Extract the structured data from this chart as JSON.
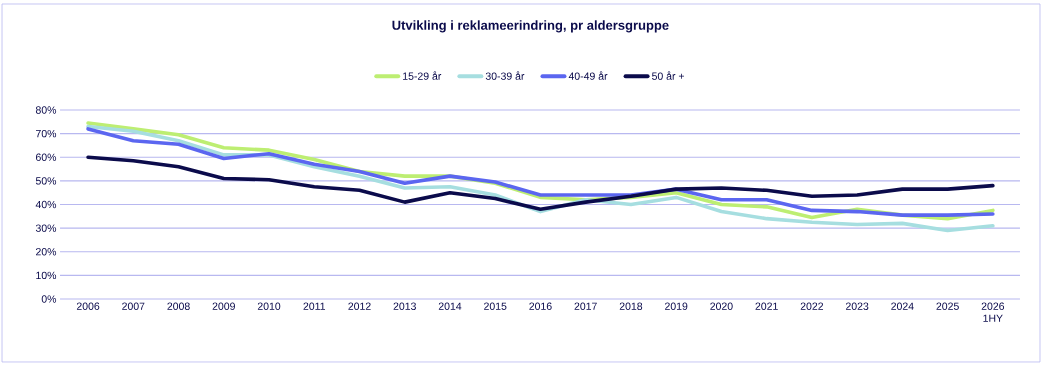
{
  "chart_data": {
    "type": "line",
    "title": "Utvikling i reklameerindring, pr aldersgruppe",
    "categories": [
      "2006",
      "2007",
      "2008",
      "2009",
      "2010",
      "2011",
      "2012",
      "2013",
      "2014",
      "2015",
      "2016",
      "2017",
      "2018",
      "2019",
      "2020",
      "2021",
      "2022",
      "2023",
      "2024",
      "2025",
      "2026 1HY"
    ],
    "series": [
      {
        "name": "15-29 år",
        "color": "#bdee72",
        "values": [
          74.5,
          72,
          69.5,
          64,
          63,
          59,
          54,
          52,
          52,
          49,
          43,
          42,
          43,
          45,
          40,
          39,
          34.5,
          38,
          35.5,
          34,
          37.5
        ]
      },
      {
        "name": "30-39 år",
        "color": "#a6dee0",
        "values": [
          73,
          71,
          67,
          61,
          61,
          56,
          52,
          47,
          47.5,
          44,
          37,
          42,
          40,
          43,
          37,
          34,
          32.5,
          31.5,
          32,
          29,
          31
        ]
      },
      {
        "name": "40-49 år",
        "color": "#5b66f0",
        "values": [
          72,
          67,
          65.5,
          59.5,
          61.5,
          57,
          54,
          49,
          52,
          49.5,
          44,
          44,
          44,
          46.5,
          42,
          42,
          37.5,
          37,
          35.5,
          35.5,
          36
        ]
      },
      {
        "name": "50 år +",
        "color": "#0b0b4b",
        "values": [
          60,
          58.5,
          56,
          51,
          50.5,
          47.5,
          46,
          41,
          45,
          42.5,
          38,
          41,
          43.5,
          46.5,
          47,
          46,
          43.5,
          44,
          46.5,
          46.5,
          48
        ]
      }
    ],
    "ylim": [
      0,
      80
    ],
    "yticks": [
      {
        "value": 0,
        "label": "0%"
      },
      {
        "value": 10,
        "label": "10%"
      },
      {
        "value": 20,
        "label": "20%"
      },
      {
        "value": 30,
        "label": "30%"
      },
      {
        "value": 40,
        "label": "40%"
      },
      {
        "value": 50,
        "label": "50%"
      },
      {
        "value": 60,
        "label": "60%"
      },
      {
        "value": 70,
        "label": "70%"
      },
      {
        "value": 80,
        "label": "80%"
      }
    ],
    "grid": "y",
    "legend": "top",
    "marker": "none",
    "line_style": "solid"
  }
}
